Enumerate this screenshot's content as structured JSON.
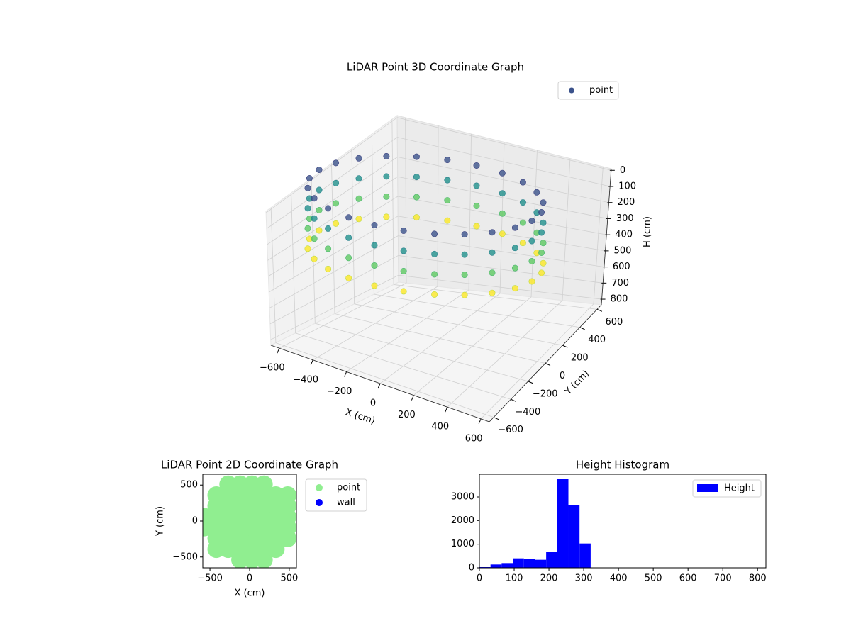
{
  "chart_data": [
    {
      "type": "scatter3d",
      "title": "LiDAR Point 3D Coordinate Graph",
      "xlabel": "X (cm)",
      "ylabel": "Y (cm)",
      "zlabel": "H (cm)",
      "xlim": [
        -650,
        650
      ],
      "ylim": [
        -650,
        650
      ],
      "zlim": [
        -10,
        835
      ],
      "zinvert": true,
      "xticks": [
        {
          "value": -600,
          "label": "−600"
        },
        {
          "value": -400,
          "label": "−400"
        },
        {
          "value": -200,
          "label": "−200"
        },
        0,
        200,
        400,
        600
      ],
      "yticks": [
        {
          "value": -600,
          "label": "−600"
        },
        {
          "value": -400,
          "label": "−400"
        },
        {
          "value": -200,
          "label": "−200"
        },
        0,
        200,
        400,
        600
      ],
      "zticks": [
        0,
        100,
        200,
        300,
        400,
        500,
        600,
        700,
        800
      ],
      "grid": true,
      "legend": "upper right",
      "colormap": "viridis",
      "series": [
        {
          "name": "point",
          "color": "#3b528b",
          "x": [
            600,
            580,
            520,
            424,
            300,
            155,
            0,
            -155,
            -300,
            -424,
            -520,
            -580,
            -600,
            -580,
            -520,
            -424,
            -300,
            -155,
            0,
            155,
            300,
            424,
            520,
            580,
            600,
            580,
            520,
            424,
            300,
            155,
            0,
            -155,
            -300,
            -424,
            -520,
            -580,
            -600,
            -580,
            -520,
            -424,
            -300,
            -155,
            0,
            155,
            300,
            424,
            520,
            580,
            600,
            580,
            520,
            424,
            300,
            155,
            0,
            -155,
            -300,
            -424,
            -520,
            -580,
            -600,
            -580,
            -520,
            -424,
            -300,
            -155,
            0,
            155,
            300,
            424,
            520,
            580,
            600,
            580,
            520,
            424,
            300,
            155,
            0,
            -155,
            -300,
            -424,
            -520,
            -580,
            -600,
            -580,
            -520,
            -424,
            -300,
            -155,
            0,
            155,
            300,
            424,
            520,
            580
          ],
          "y": [
            0,
            155,
            300,
            424,
            520,
            580,
            600,
            580,
            520,
            424,
            300,
            155,
            0,
            -155,
            -300,
            -424,
            -520,
            -580,
            -600,
            -580,
            -520,
            -424,
            -300,
            -155,
            0,
            155,
            300,
            424,
            520,
            580,
            600,
            580,
            520,
            424,
            300,
            155,
            0,
            -155,
            -300,
            -424,
            -520,
            -580,
            -600,
            -580,
            -520,
            -424,
            -300,
            -155,
            0,
            155,
            300,
            424,
            520,
            580,
            600,
            580,
            520,
            424,
            300,
            155,
            0,
            -155,
            -300,
            -424,
            -520,
            -580,
            -600,
            -580,
            -520,
            -424,
            -300,
            -155,
            0,
            155,
            300,
            424,
            520,
            580,
            600,
            580,
            520,
            424,
            300,
            155,
            0,
            -155,
            -300,
            -424,
            -520,
            -580,
            -600,
            -580,
            -520,
            -424,
            -300,
            -155
          ],
          "z": [
            150,
            150,
            150,
            150,
            150,
            150,
            150,
            150,
            150,
            150,
            150,
            150,
            150,
            150,
            150,
            150,
            150,
            150,
            150,
            150,
            150,
            150,
            150,
            150,
            300,
            300,
            300,
            300,
            300,
            300,
            300,
            300,
            300,
            300,
            300,
            300,
            300,
            300,
            300,
            300,
            300,
            300,
            300,
            300,
            300,
            300,
            300,
            300,
            450,
            450,
            450,
            450,
            450,
            450,
            450,
            450,
            450,
            450,
            450,
            450,
            450,
            450,
            450,
            450,
            450,
            450,
            450,
            450,
            450,
            450,
            450,
            450,
            600,
            600,
            600,
            600,
            600,
            600,
            600,
            600,
            600,
            600,
            600,
            600,
            600,
            600,
            600,
            600,
            600,
            600,
            600,
            600,
            600,
            600,
            600,
            600
          ]
        }
      ]
    },
    {
      "type": "scatter",
      "title": "LiDAR Point 2D Coordinate Graph",
      "xlabel": "X (cm)",
      "ylabel": "Y (cm)",
      "xlim": [
        -590,
        590
      ],
      "ylim": [
        -650,
        650
      ],
      "xticks": [
        {
          "value": -500,
          "label": "−500"
        },
        0,
        500
      ],
      "yticks": [
        {
          "value": -500,
          "label": "−500"
        },
        0,
        500
      ],
      "legend": "outside upper right",
      "series": [
        {
          "name": "point",
          "color": "#90ee90",
          "x": [
            -570,
            -570,
            -420,
            -420,
            -420,
            -420,
            -420,
            -420,
            -270,
            -270,
            -270,
            -270,
            -270,
            -270,
            -270,
            -120,
            -120,
            -120,
            -120,
            -120,
            -120,
            -120,
            -120,
            30,
            30,
            30,
            30,
            30,
            30,
            30,
            30,
            180,
            180,
            180,
            180,
            180,
            180,
            180,
            180,
            330,
            330,
            330,
            330,
            330,
            330,
            480,
            480,
            480,
            480,
            480
          ],
          "y": [
            -90,
            60,
            -390,
            -240,
            -90,
            60,
            210,
            360,
            -390,
            -240,
            -90,
            60,
            210,
            360,
            510,
            -540,
            -390,
            -240,
            -90,
            60,
            210,
            360,
            510,
            -540,
            -390,
            -240,
            -90,
            60,
            210,
            360,
            510,
            -540,
            -390,
            -240,
            -90,
            60,
            210,
            360,
            510,
            -390,
            -240,
            -90,
            60,
            210,
            360,
            -240,
            -90,
            60,
            210,
            360
          ]
        },
        {
          "name": "wall",
          "color": "#0000ff",
          "x": [],
          "y": []
        }
      ]
    },
    {
      "type": "histogram",
      "title": "Height Histogram",
      "name": "Height",
      "color": "#0000ff",
      "legend": "upper right",
      "bins": [
        0,
        32,
        64,
        96,
        128,
        160,
        192,
        224,
        256,
        288,
        320,
        352,
        384,
        416,
        448,
        480,
        512,
        544,
        576,
        608,
        640,
        672,
        704,
        736,
        768,
        800
      ],
      "values": [
        30,
        140,
        200,
        400,
        370,
        340,
        680,
        3750,
        2650,
        1030,
        0,
        0,
        0,
        0,
        0,
        0,
        0,
        0,
        0,
        0,
        0,
        0,
        0,
        0,
        0
      ],
      "xlim": [
        0,
        824
      ],
      "ylim": [
        0,
        3960
      ],
      "xticks": [
        0,
        100,
        200,
        300,
        400,
        500,
        600,
        700,
        800
      ],
      "yticks": [
        0,
        1000,
        2000,
        3000
      ]
    }
  ]
}
